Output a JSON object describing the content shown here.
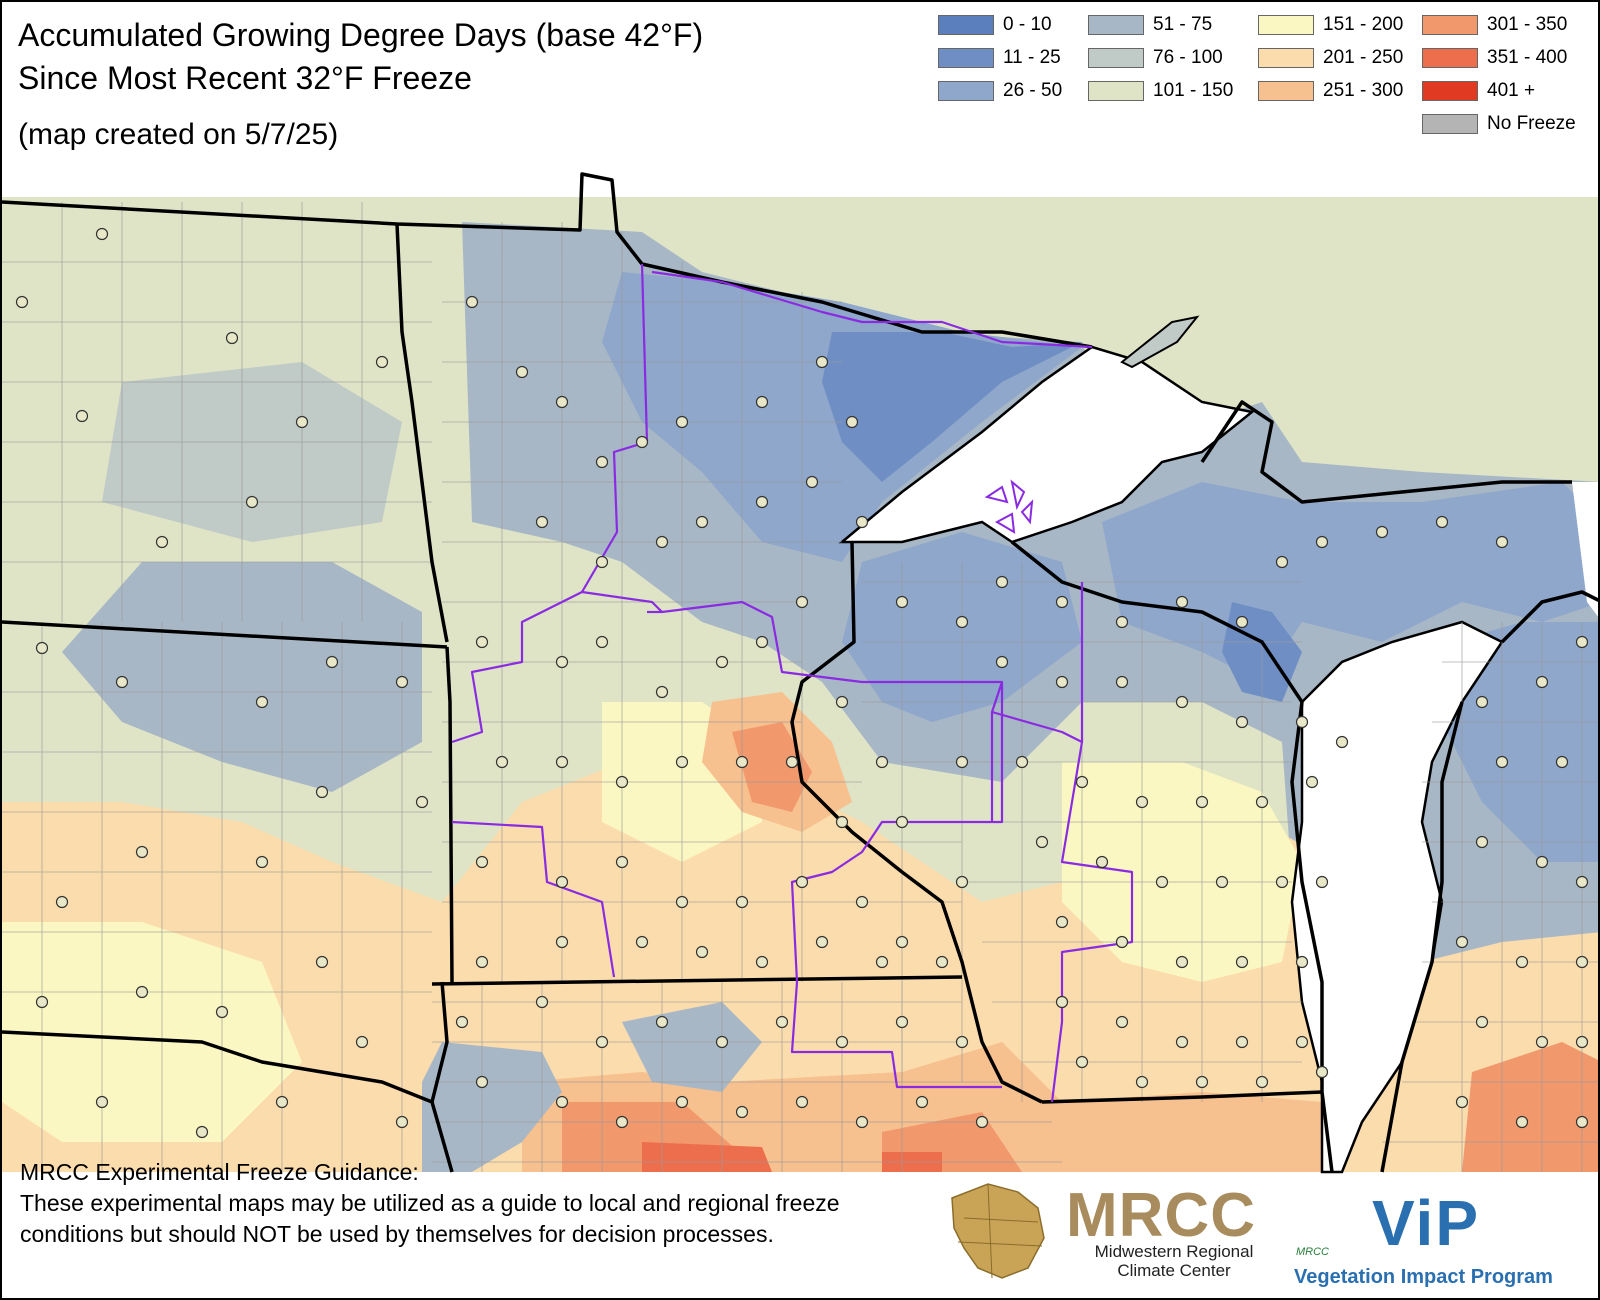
{
  "title": {
    "line1": "Accumulated Growing Degree Days (base 42°F)",
    "line2": "Since Most Recent 32°F Freeze",
    "created": "(map created on 5/7/25)"
  },
  "legend": [
    {
      "label": "0 - 10",
      "color": "#5b7fbd"
    },
    {
      "label": "11 - 25",
      "color": "#6f8fc4"
    },
    {
      "label": "26 - 50",
      "color": "#8fa7cb"
    },
    {
      "label": "51 - 75",
      "color": "#a8b7c6"
    },
    {
      "label": "76 - 100",
      "color": "#c0cac6"
    },
    {
      "label": "101 - 150",
      "color": "#dfe4c6"
    },
    {
      "label": "151 - 200",
      "color": "#fbf7c2"
    },
    {
      "label": "201 - 250",
      "color": "#fbdcac"
    },
    {
      "label": "251 - 300",
      "color": "#f7c08f"
    },
    {
      "label": "301 - 350",
      "color": "#f1986d"
    },
    {
      "label": "351 - 400",
      "color": "#ed6e4c"
    },
    {
      "label": "401 +",
      "color": "#e03b22"
    },
    {
      "label": "No Freeze",
      "color": "#b4b4b4"
    }
  ],
  "note": {
    "heading": "MRCC Experimental Freeze Guidance:",
    "body": "These experimental maps may be utilized as a guide to local and regional freeze conditions but should NOT be used by themselves for decision processes."
  },
  "logos": {
    "mrcc": "MRCC",
    "mrcc_line1": "Midwestern Regional",
    "mrcc_line2": "Climate Center",
    "vip_small": "MRCC",
    "vip": "ViP",
    "vip_sub": "Vegetation Impact Program"
  },
  "colors": {
    "water": "#ffffff",
    "border": "#000000",
    "climate_division": "#8a2be2",
    "station": "#e8e8c8"
  }
}
